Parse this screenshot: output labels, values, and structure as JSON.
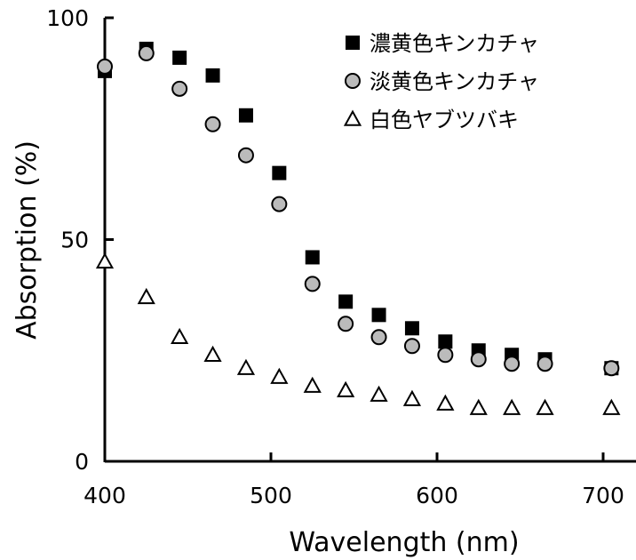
{
  "chart_data": {
    "type": "scatter",
    "xlabel": "Wavelength (nm)",
    "ylabel": "Absorption (%)",
    "xlim": [
      400,
      720
    ],
    "ylim": [
      0,
      100
    ],
    "x_ticks": [
      400,
      500,
      600,
      700
    ],
    "y_ticks": [
      0,
      50,
      100
    ],
    "grid": false,
    "legend_position": "top-right",
    "x": [
      400,
      425,
      445,
      465,
      485,
      505,
      525,
      545,
      565,
      585,
      605,
      625,
      645,
      665,
      705
    ],
    "series": [
      {
        "name": "濃黄色キンカチャ",
        "marker": "filled-square",
        "color": "#000000",
        "values": [
          88,
          93,
          91,
          87,
          78,
          65,
          46,
          36,
          33,
          30,
          27,
          25,
          24,
          23,
          21
        ]
      },
      {
        "name": "淡黄色キンカチャ",
        "marker": "gray-circle",
        "color": "#bbbbbb",
        "values": [
          89,
          92,
          84,
          76,
          69,
          58,
          40,
          31,
          28,
          26,
          24,
          23,
          22,
          22,
          21
        ]
      },
      {
        "name": "白色ヤブツバキ",
        "marker": "open-triangle",
        "color": "#ffffff",
        "values": [
          45,
          37,
          28,
          24,
          21,
          19,
          17,
          16,
          15,
          14,
          13,
          12,
          12,
          12,
          12
        ]
      }
    ]
  }
}
